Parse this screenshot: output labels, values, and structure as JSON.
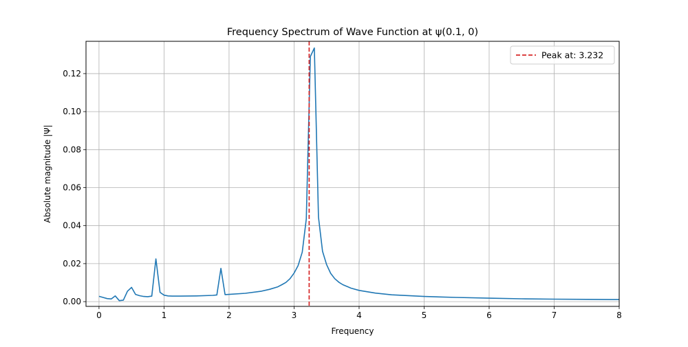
{
  "chart_data": {
    "type": "line",
    "title": "Frequency Spectrum of Wave Function at ψ(0.1, 0)",
    "xlabel": "Frequency",
    "ylabel": "Absolute magnitude |Ψ|",
    "xlim": [
      -0.2,
      8.0
    ],
    "ylim": [
      -0.0025,
      0.137
    ],
    "xticks": [
      0,
      1,
      2,
      3,
      4,
      5,
      6,
      7,
      8
    ],
    "xtick_labels": [
      "0",
      "1",
      "2",
      "3",
      "4",
      "5",
      "6",
      "7",
      "8"
    ],
    "yticks": [
      0.0,
      0.02,
      0.04,
      0.06,
      0.08,
      0.1,
      0.12
    ],
    "ytick_labels": [
      "0.00",
      "0.02",
      "0.04",
      "0.06",
      "0.08",
      "0.10",
      "0.12"
    ],
    "grid": true,
    "legend_position": "top-right",
    "series": [
      {
        "color": "#1f77b4",
        "x": [
          0.0,
          0.062,
          0.125,
          0.188,
          0.25,
          0.312,
          0.375,
          0.438,
          0.5,
          0.562,
          0.625,
          0.688,
          0.75,
          0.812,
          0.875,
          0.938,
          1.0,
          1.062,
          1.125,
          1.25,
          1.5,
          1.75,
          1.812,
          1.875,
          1.938,
          2.0,
          2.25,
          2.5,
          2.625,
          2.75,
          2.812,
          2.875,
          2.938,
          3.0,
          3.062,
          3.125,
          3.188,
          3.25,
          3.312,
          3.375,
          3.438,
          3.5,
          3.562,
          3.625,
          3.688,
          3.75,
          3.875,
          4.0,
          4.25,
          4.5,
          5.0,
          5.5,
          6.0,
          6.5,
          7.0,
          7.5,
          8.0
        ],
        "y": [
          0.0028,
          0.0022,
          0.0016,
          0.0014,
          0.003,
          0.0005,
          0.0008,
          0.0055,
          0.0075,
          0.0038,
          0.0031,
          0.0027,
          0.0026,
          0.0029,
          0.0225,
          0.0049,
          0.0034,
          0.003,
          0.0029,
          0.0029,
          0.003,
          0.0033,
          0.0035,
          0.0175,
          0.0037,
          0.0038,
          0.0044,
          0.0055,
          0.0065,
          0.0078,
          0.0089,
          0.0101,
          0.0121,
          0.015,
          0.019,
          0.026,
          0.0435,
          0.129,
          0.1335,
          0.0445,
          0.0265,
          0.0195,
          0.0149,
          0.0121,
          0.0102,
          0.0089,
          0.0071,
          0.0059,
          0.0045,
          0.0036,
          0.0027,
          0.0022,
          0.0018,
          0.0015,
          0.0013,
          0.0012,
          0.0011
        ]
      }
    ],
    "vline": {
      "x": 3.232,
      "color": "#d62728",
      "style": "dashed"
    },
    "legend": [
      {
        "label": "Peak at: 3.232",
        "color": "#d62728",
        "style": "dashed"
      }
    ]
  }
}
